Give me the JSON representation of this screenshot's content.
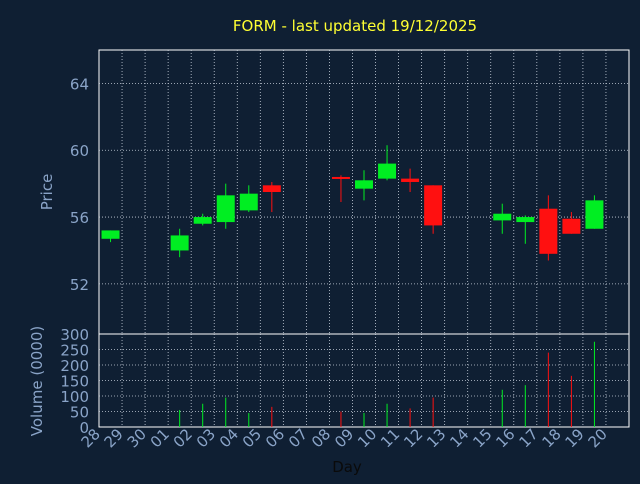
{
  "chart_data": {
    "type": "candlestick",
    "title": "FORM - last updated 19/12/2025",
    "xlabel": "Day",
    "price_panel": {
      "ylabel": "Price",
      "yticks": [
        52,
        56,
        60,
        64
      ],
      "ylim": [
        49,
        66
      ]
    },
    "volume_panel": {
      "ylabel": "Volume (0000)",
      "yticks": [
        0,
        50,
        100,
        150,
        200,
        250,
        300
      ],
      "ylim": [
        0,
        300
      ]
    },
    "x_labels": [
      "28",
      "29",
      "30",
      "01",
      "02",
      "03",
      "04",
      "05",
      "06",
      "07",
      "08",
      "09",
      "10",
      "11",
      "12",
      "13",
      "14",
      "15",
      "16",
      "17",
      "18",
      "19",
      "20"
    ],
    "grid": true,
    "colors": {
      "up": "#00ee22",
      "down": "#ff1010",
      "background": "#0f1f33",
      "title": "#ffff33",
      "axis_text": "#8aa4c8",
      "grid": "#c8d0dc"
    },
    "candles": [
      {
        "day": "28",
        "open": 54.7,
        "close": 55.2,
        "high": 55.2,
        "low": 54.5,
        "volume": 0
      },
      {
        "day": "01",
        "open": 54.0,
        "close": 54.9,
        "high": 55.3,
        "low": 53.6,
        "volume": 55
      },
      {
        "day": "02",
        "open": 55.6,
        "close": 56.0,
        "high": 56.2,
        "low": 55.5,
        "volume": 75
      },
      {
        "day": "03",
        "open": 55.7,
        "close": 57.3,
        "high": 58.0,
        "low": 55.3,
        "volume": 95
      },
      {
        "day": "04",
        "open": 56.4,
        "close": 57.4,
        "high": 57.9,
        "low": 56.3,
        "volume": 45
      },
      {
        "day": "05",
        "open": 57.9,
        "close": 57.5,
        "high": 58.1,
        "low": 56.3,
        "volume": 65
      },
      {
        "day": "08",
        "open": 58.4,
        "close": 58.3,
        "high": 58.5,
        "low": 56.9,
        "volume": 50
      },
      {
        "day": "09",
        "open": 57.7,
        "close": 58.2,
        "high": 58.8,
        "low": 57.0,
        "volume": 45
      },
      {
        "day": "10",
        "open": 58.3,
        "close": 59.2,
        "high": 60.3,
        "low": 58.2,
        "volume": 75
      },
      {
        "day": "11",
        "open": 58.3,
        "close": 58.1,
        "high": 58.9,
        "low": 57.5,
        "volume": 60
      },
      {
        "day": "12",
        "open": 57.9,
        "close": 55.5,
        "high": 57.9,
        "low": 55.0,
        "volume": 95
      },
      {
        "day": "15",
        "open": 55.8,
        "close": 56.2,
        "high": 56.8,
        "low": 55.0,
        "volume": 120
      },
      {
        "day": "16",
        "open": 55.7,
        "close": 56.0,
        "high": 56.1,
        "low": 54.4,
        "volume": 135
      },
      {
        "day": "17",
        "open": 56.5,
        "close": 53.8,
        "high": 57.3,
        "low": 53.4,
        "volume": 240
      },
      {
        "day": "18",
        "open": 55.9,
        "close": 55.0,
        "high": 56.3,
        "low": 55.0,
        "volume": 165
      },
      {
        "day": "19",
        "open": 55.3,
        "close": 57.0,
        "high": 57.3,
        "low": 55.3,
        "volume": 275
      }
    ]
  }
}
